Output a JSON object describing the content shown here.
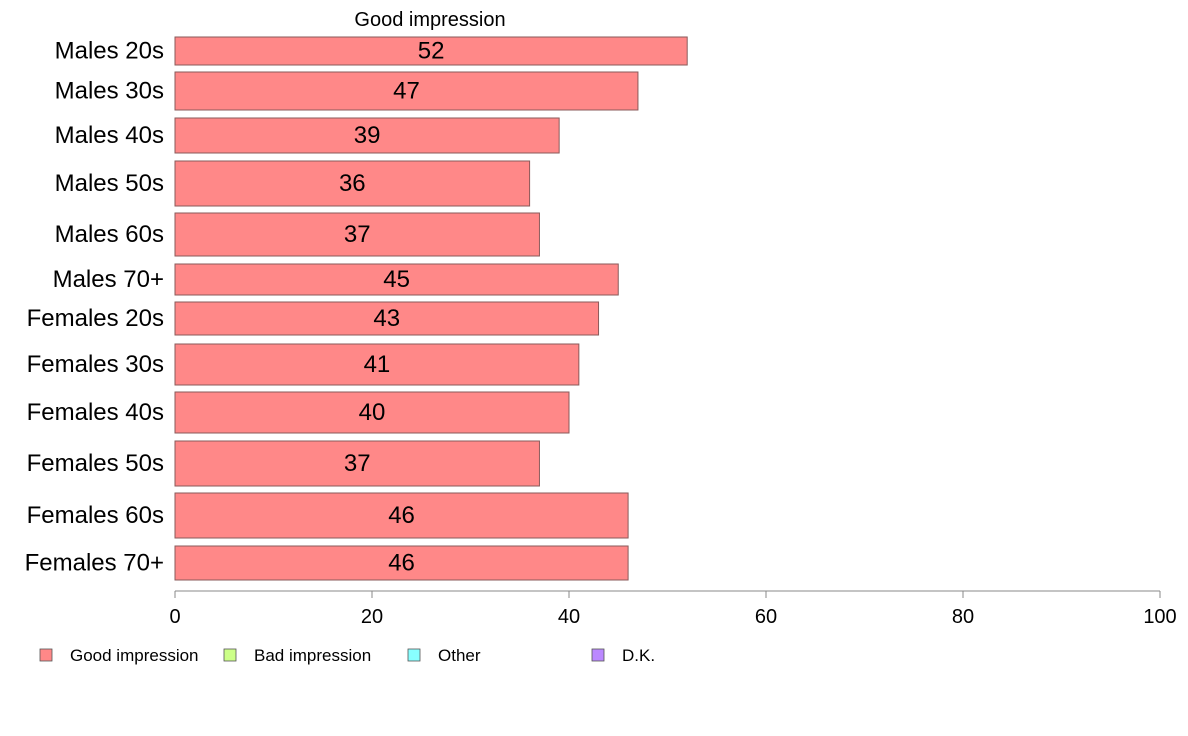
{
  "chart_data": {
    "type": "bar",
    "orientation": "horizontal",
    "title": "Good impression",
    "categories": [
      "Males 20s",
      "Males 30s",
      "Males 40s",
      "Males 50s",
      "Males 60s",
      "Males 70+",
      "Females 20s",
      "Females 30s",
      "Females 40s",
      "Females 50s",
      "Females 60s",
      "Females 70+"
    ],
    "series": [
      {
        "name": "Good impression",
        "values": [
          52,
          47,
          39,
          36,
          37,
          45,
          43,
          41,
          40,
          37,
          46,
          46
        ]
      }
    ],
    "value_labels": [
      "52",
      "47",
      "39",
      "36",
      "37",
      "45",
      "43",
      "41",
      "40",
      "37",
      "46",
      "46"
    ],
    "xlim": [
      0,
      100
    ],
    "xticks": [
      0,
      20,
      40,
      60,
      80,
      100
    ],
    "xtick_labels": [
      "0",
      "20",
      "40",
      "60",
      "80",
      "100"
    ],
    "legend": {
      "placement": "bottom-left",
      "entries": [
        {
          "label": "Good impression",
          "color": "#ff8888"
        },
        {
          "label": "Bad impression",
          "color": "#ccff88"
        },
        {
          "label": "Other",
          "color": "#88ffff"
        },
        {
          "label": "D.K.",
          "color": "#bb88ff"
        }
      ]
    },
    "colors": {
      "bar_fill": "#ff8888",
      "bar_stroke": "#8a5a5a",
      "axis": "#888888"
    },
    "grid": false
  }
}
